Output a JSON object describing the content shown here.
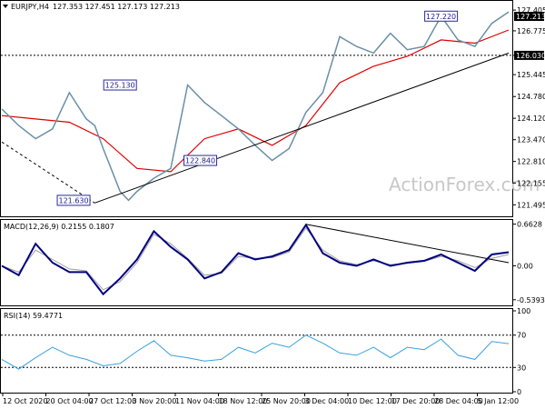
{
  "chart_window": {
    "symbol_label": "EURJPY,H4",
    "ohlc_values": "127.353 127.451 127.173 127.213",
    "watermark": "ActionForex.com",
    "colors": {
      "up_candle": "#6a8fa8",
      "moving_average": "#e00000",
      "trend_line": "#000000",
      "macd_line": "#000080",
      "macd_signal": "#a0a0a0",
      "rsi_line": "#3aa0e0",
      "price_marker_bg": "#000000",
      "grid_dotted": "#000000"
    }
  },
  "chart_data": [
    {
      "type": "line",
      "title": "EURJPY,H4",
      "ylim": [
        121.2,
        127.6
      ],
      "y_ticks": [
        "127.405",
        "126.775",
        "126.030",
        "125.445",
        "124.780",
        "124.120",
        "123.470",
        "122.810",
        "122.155",
        "121.495"
      ],
      "current_price": "127.213",
      "support_level": "126.030",
      "price_labels": [
        {
          "label": "127.220",
          "x": 52.0,
          "y": 127.22
        },
        {
          "label": "125.130",
          "x": 14.0,
          "y": 125.13
        },
        {
          "label": "122.840",
          "x": 23.5,
          "y": 122.84
        },
        {
          "label": "121.630",
          "x": 8.5,
          "y": 121.63
        }
      ],
      "x_labels": [
        "12 Oct 2020",
        "20 Oct 04:00",
        "27 Oct 12:00",
        "3 Nov 20:00",
        "11 Nov 04:00",
        "18 Nov 12:00",
        "25 Nov 20:00",
        "3 Dec 04:00",
        "10 Dec 12:00",
        "17 Dec 20:00",
        "28 Dec 04:00",
        "5 Jan 12:00"
      ],
      "series": [
        {
          "x": [
            0,
            2,
            4,
            6,
            8,
            10,
            11,
            12,
            14,
            15,
            16,
            18,
            20,
            22,
            24,
            26,
            28,
            30,
            32,
            34,
            36,
            38,
            40,
            42,
            44,
            46,
            48,
            50,
            52,
            54,
            56,
            58,
            60
          ],
          "values": [
            124.4,
            123.9,
            123.5,
            123.8,
            124.9,
            124.1,
            123.9,
            123.2,
            121.9,
            121.63,
            121.9,
            122.3,
            122.6,
            125.13,
            124.6,
            124.2,
            123.8,
            123.3,
            122.84,
            123.2,
            124.3,
            124.9,
            126.6,
            126.3,
            126.1,
            126.7,
            126.2,
            126.3,
            127.22,
            126.5,
            126.3,
            127.0,
            127.35
          ]
        },
        {
          "x": [
            0,
            4,
            8,
            12,
            16,
            20,
            24,
            28,
            32,
            36,
            40,
            44,
            48,
            52,
            56,
            60
          ],
          "values": [
            124.2,
            124.1,
            124.0,
            123.5,
            122.6,
            122.5,
            123.5,
            123.8,
            123.3,
            123.9,
            125.2,
            125.7,
            126.0,
            126.5,
            126.4,
            126.8
          ]
        }
      ],
      "trend_lines": [
        {
          "x": [
            0,
            11
          ],
          "y": [
            123.4,
            121.55
          ]
        },
        {
          "x": [
            11,
            60
          ],
          "y": [
            121.55,
            126.1
          ]
        }
      ]
    },
    {
      "type": "line",
      "title": "MACD(12,26,9) 0.2155 0.1807",
      "ylim": [
        -0.6,
        0.7
      ],
      "y_ticks": [
        "0.6628",
        "0.00",
        "-0.5393"
      ],
      "series": [
        {
          "x": [
            0,
            2,
            4,
            6,
            8,
            10,
            12,
            14,
            16,
            18,
            20,
            22,
            24,
            26,
            28,
            30,
            32,
            34,
            36,
            38,
            40,
            42,
            44,
            46,
            48,
            50,
            52,
            54,
            56,
            58,
            60
          ],
          "values": [
            0.0,
            -0.15,
            0.35,
            0.05,
            -0.1,
            -0.1,
            -0.45,
            -0.2,
            0.1,
            0.55,
            0.3,
            0.1,
            -0.2,
            -0.1,
            0.2,
            0.1,
            0.15,
            0.25,
            0.65,
            0.2,
            0.05,
            0.0,
            0.1,
            0.0,
            0.05,
            0.08,
            0.18,
            0.05,
            -0.08,
            0.18,
            0.2155
          ]
        },
        {
          "x": [
            0,
            2,
            4,
            6,
            8,
            10,
            12,
            14,
            16,
            18,
            20,
            22,
            24,
            26,
            28,
            30,
            32,
            34,
            36,
            38,
            40,
            42,
            44,
            46,
            48,
            50,
            52,
            54,
            56,
            58,
            60
          ],
          "values": [
            0.0,
            -0.1,
            0.25,
            0.1,
            -0.05,
            -0.08,
            -0.38,
            -0.25,
            0.05,
            0.5,
            0.35,
            0.12,
            -0.15,
            -0.12,
            0.15,
            0.12,
            0.13,
            0.22,
            0.6,
            0.25,
            0.08,
            0.02,
            0.08,
            0.02,
            0.04,
            0.07,
            0.15,
            0.08,
            -0.03,
            0.12,
            0.1807
          ]
        }
      ],
      "trend_lines": [
        {
          "x": [
            36,
            60
          ],
          "y": [
            0.66,
            0.05
          ]
        }
      ]
    },
    {
      "type": "line",
      "title": "RSI(14) 59.4771",
      "ylim": [
        0,
        100
      ],
      "y_ticks": [
        "100",
        "70",
        "30",
        "0"
      ],
      "series": [
        {
          "x": [
            0,
            2,
            4,
            6,
            8,
            10,
            12,
            14,
            16,
            18,
            20,
            22,
            24,
            26,
            28,
            30,
            32,
            34,
            36,
            38,
            40,
            42,
            44,
            46,
            48,
            50,
            52,
            54,
            56,
            58,
            60
          ],
          "values": [
            40,
            28,
            42,
            55,
            45,
            40,
            32,
            35,
            50,
            63,
            45,
            42,
            38,
            40,
            55,
            48,
            60,
            55,
            70,
            60,
            48,
            45,
            55,
            42,
            55,
            52,
            65,
            45,
            40,
            62,
            59.4771
          ]
        }
      ]
    }
  ]
}
